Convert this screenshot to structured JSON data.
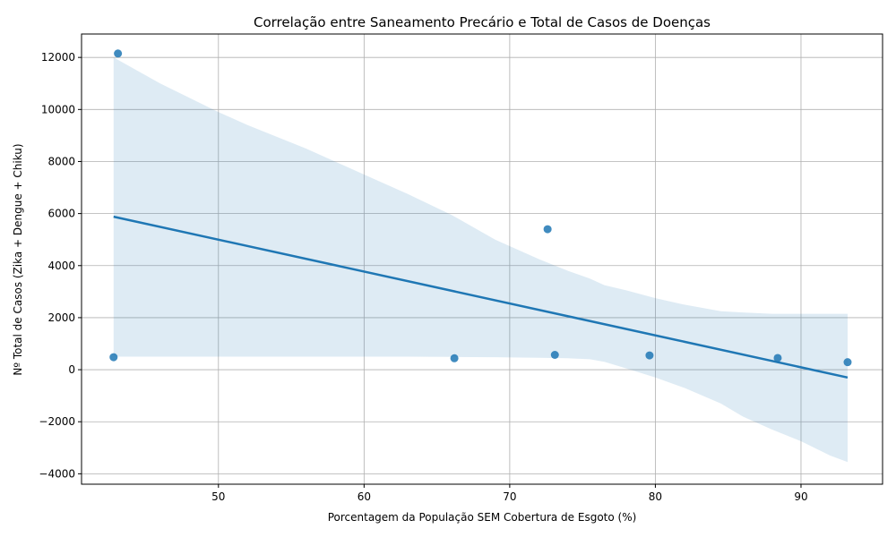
{
  "chart_data": {
    "type": "scatter",
    "title": "Correlação entre Saneamento Precário e Total de Casos de Doenças",
    "xlabel": "Porcentagem da População SEM Cobertura de Esgoto (%)",
    "ylabel": "Nº Total de Casos (Zika + Dengue + Chiku)",
    "xlim": [
      40.6,
      95.6
    ],
    "ylim": [
      -4400,
      12900
    ],
    "xticks": [
      50,
      60,
      70,
      80,
      90
    ],
    "yticks": [
      -4000,
      -2000,
      0,
      2000,
      4000,
      6000,
      8000,
      10000,
      12000
    ],
    "grid": true,
    "points": [
      {
        "x": 43.1,
        "y": 12150
      },
      {
        "x": 42.8,
        "y": 480
      },
      {
        "x": 66.2,
        "y": 440
      },
      {
        "x": 72.6,
        "y": 5400
      },
      {
        "x": 73.1,
        "y": 570
      },
      {
        "x": 79.6,
        "y": 550
      },
      {
        "x": 88.4,
        "y": 450
      },
      {
        "x": 93.2,
        "y": 290
      }
    ],
    "regression": {
      "x": [
        42.8,
        93.2
      ],
      "y": [
        5880,
        -300
      ]
    },
    "confidence_band": [
      {
        "x": 42.8,
        "lower": 500,
        "upper": 12000
      },
      {
        "x": 46,
        "lower": 500,
        "upper": 11000
      },
      {
        "x": 50,
        "lower": 500,
        "upper": 9900
      },
      {
        "x": 52,
        "lower": 500,
        "upper": 9400
      },
      {
        "x": 56,
        "lower": 500,
        "upper": 8500
      },
      {
        "x": 60,
        "lower": 500,
        "upper": 7500
      },
      {
        "x": 63,
        "lower": 500,
        "upper": 6750
      },
      {
        "x": 66,
        "lower": 490,
        "upper": 5950
      },
      {
        "x": 69,
        "lower": 480,
        "upper": 5000
      },
      {
        "x": 72,
        "lower": 460,
        "upper": 4250
      },
      {
        "x": 74,
        "lower": 440,
        "upper": 3800
      },
      {
        "x": 75.5,
        "lower": 400,
        "upper": 3500
      },
      {
        "x": 76.5,
        "lower": 300,
        "upper": 3250
      },
      {
        "x": 78,
        "lower": 50,
        "upper": 3050
      },
      {
        "x": 80,
        "lower": -300,
        "upper": 2750
      },
      {
        "x": 82,
        "lower": -700,
        "upper": 2500
      },
      {
        "x": 84.5,
        "lower": -1300,
        "upper": 2250
      },
      {
        "x": 86,
        "lower": -1800,
        "upper": 2200
      },
      {
        "x": 88,
        "lower": -2300,
        "upper": 2150
      },
      {
        "x": 90,
        "lower": -2750,
        "upper": 2150
      },
      {
        "x": 92,
        "lower": -3300,
        "upper": 2150
      },
      {
        "x": 93.2,
        "lower": -3550,
        "upper": 2150
      }
    ],
    "colors": {
      "point": "#1f77b4",
      "line": "#1f77b4",
      "band": "#1f77b4",
      "grid": "#b0b0b0"
    }
  }
}
